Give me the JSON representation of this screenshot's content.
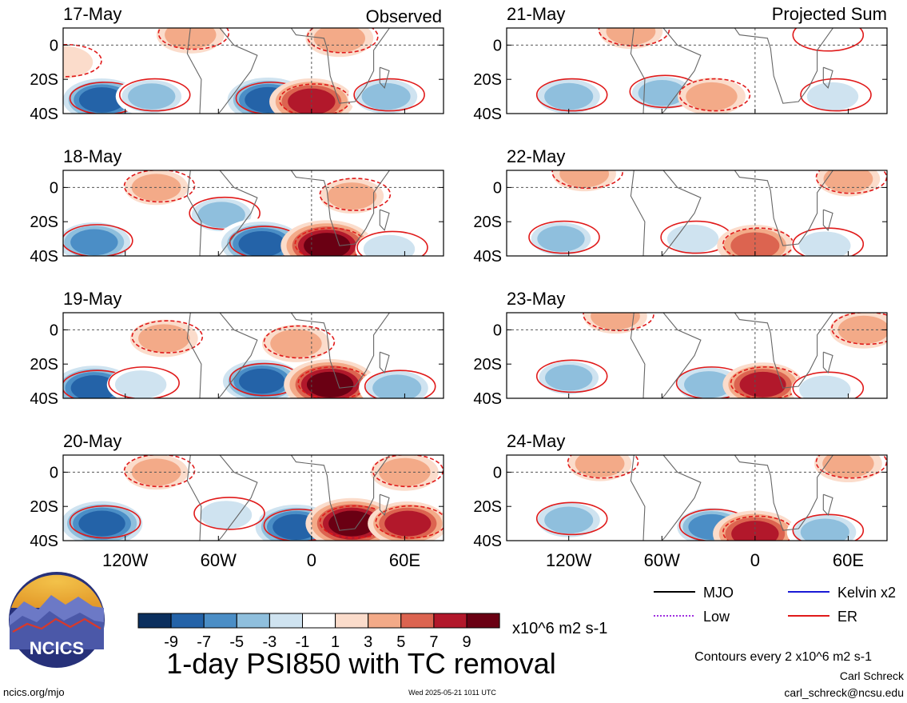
{
  "figure": {
    "title": "1-day PSI850 with TC removal",
    "left_column_label": "Observed",
    "right_column_label": "Projected Sum",
    "source_link": "ncics.org/mjo",
    "timestamp": "Wed 2025-05-21 1011 UTC",
    "author": "Carl Schreck",
    "email": "carl_schreck@ncsu.edu",
    "logo_text": "NCICS",
    "contour_note": "Contours every 2 x10^6 m2 s-1",
    "colorbar_units": "x10^6 m2 s-1"
  },
  "legend": [
    {
      "label": "MJO",
      "color": "#000000",
      "style": "solid"
    },
    {
      "label": "Kelvin x2",
      "color": "#1a1ad6",
      "style": "solid"
    },
    {
      "label": "Low",
      "color": "#a030e0",
      "style": "dotted"
    },
    {
      "label": "ER",
      "color": "#e01a1a",
      "style": "solid"
    }
  ],
  "colorbar": {
    "labels": [
      "-9",
      "-7",
      "-5",
      "-3",
      "-1",
      "1",
      "3",
      "5",
      "7",
      "9"
    ],
    "colors": [
      "#0b2f5e",
      "#2463a8",
      "#4b8ec6",
      "#8fbfdd",
      "#cfe3f0",
      "#ffffff",
      "#fbdccb",
      "#f3aa88",
      "#dc6450",
      "#b2182b",
      "#6a0013"
    ]
  },
  "chart_data": {
    "type": "heatmap",
    "variable": "PSI850",
    "lon_ticks": [
      "120W",
      "60W",
      "0",
      "60E"
    ],
    "lat_ticks": [
      "0",
      "20S",
      "40S"
    ],
    "panels": [
      {
        "date": "17-May",
        "column": "Observed",
        "centers": [
          {
            "lon": -135,
            "lat": -32,
            "value": -9
          },
          {
            "lon": -103,
            "lat": -30,
            "value": -5
          },
          {
            "lon": -28,
            "lat": -32,
            "value": -10
          },
          {
            "lon": 0,
            "lat": -33,
            "value": 8
          },
          {
            "lon": 48,
            "lat": -30,
            "value": -6
          },
          {
            "lon": 18,
            "lat": 4,
            "value": 4
          },
          {
            "lon": -78,
            "lat": 6,
            "value": 4
          },
          {
            "lon": -160,
            "lat": -10,
            "value": 2
          }
        ]
      },
      {
        "date": "18-May",
        "column": "Observed",
        "centers": [
          {
            "lon": -140,
            "lat": -32,
            "value": -8
          },
          {
            "lon": -58,
            "lat": -16,
            "value": -5
          },
          {
            "lon": -32,
            "lat": -33,
            "value": -10
          },
          {
            "lon": 10,
            "lat": -34,
            "value": 10
          },
          {
            "lon": 50,
            "lat": -36,
            "value": -4
          },
          {
            "lon": 26,
            "lat": -5,
            "value": 3
          },
          {
            "lon": -100,
            "lat": 0,
            "value": 3
          }
        ]
      },
      {
        "date": "19-May",
        "column": "Observed",
        "centers": [
          {
            "lon": -140,
            "lat": -34,
            "value": -10
          },
          {
            "lon": -32,
            "lat": -30,
            "value": -9
          },
          {
            "lon": 12,
            "lat": -32,
            "value": 10
          },
          {
            "lon": 55,
            "lat": -34,
            "value": -6
          },
          {
            "lon": -95,
            "lat": -5,
            "value": 4
          },
          {
            "lon": -10,
            "lat": -8,
            "value": 4
          },
          {
            "lon": -110,
            "lat": -32,
            "value": -4
          }
        ]
      },
      {
        "date": "20-May",
        "column": "Observed",
        "centers": [
          {
            "lon": -135,
            "lat": -30,
            "value": -10
          },
          {
            "lon": -10,
            "lat": -32,
            "value": -10
          },
          {
            "lon": 26,
            "lat": -30,
            "value": 10
          },
          {
            "lon": 62,
            "lat": -30,
            "value": 7
          },
          {
            "lon": -55,
            "lat": -25,
            "value": -4
          },
          {
            "lon": 60,
            "lat": 0,
            "value": 4
          },
          {
            "lon": -100,
            "lat": 0,
            "value": 3
          }
        ]
      },
      {
        "date": "21-May",
        "column": "Projected Sum",
        "centers": [
          {
            "lon": -120,
            "lat": -30,
            "value": -6
          },
          {
            "lon": -60,
            "lat": -28,
            "value": -5
          },
          {
            "lon": -28,
            "lat": -30,
            "value": 4
          },
          {
            "lon": 50,
            "lat": -30,
            "value": -4
          },
          {
            "lon": -80,
            "lat": 8,
            "value": 3
          },
          {
            "lon": 45,
            "lat": 5,
            "value": -2
          }
        ]
      },
      {
        "date": "22-May",
        "column": "Projected Sum",
        "centers": [
          {
            "lon": -125,
            "lat": -30,
            "value": -5
          },
          {
            "lon": -40,
            "lat": -30,
            "value": -4
          },
          {
            "lon": 0,
            "lat": -34,
            "value": 6
          },
          {
            "lon": 45,
            "lat": -34,
            "value": -4
          },
          {
            "lon": -110,
            "lat": 8,
            "value": 3
          },
          {
            "lon": 60,
            "lat": 5,
            "value": 3
          }
        ]
      },
      {
        "date": "23-May",
        "column": "Projected Sum",
        "centers": [
          {
            "lon": -120,
            "lat": -28,
            "value": -5
          },
          {
            "lon": -30,
            "lat": -32,
            "value": -6
          },
          {
            "lon": 5,
            "lat": -32,
            "value": 7
          },
          {
            "lon": 45,
            "lat": -35,
            "value": -4
          },
          {
            "lon": 70,
            "lat": 0,
            "value": 4
          },
          {
            "lon": -90,
            "lat": 8,
            "value": 3
          }
        ]
      },
      {
        "date": "24-May",
        "column": "Projected Sum",
        "centers": [
          {
            "lon": -120,
            "lat": -28,
            "value": -6
          },
          {
            "lon": -28,
            "lat": -32,
            "value": -7
          },
          {
            "lon": 0,
            "lat": -36,
            "value": 8
          },
          {
            "lon": 45,
            "lat": -35,
            "value": -6
          },
          {
            "lon": 60,
            "lat": 5,
            "value": 4
          },
          {
            "lon": -100,
            "lat": 5,
            "value": 3
          }
        ]
      }
    ]
  }
}
